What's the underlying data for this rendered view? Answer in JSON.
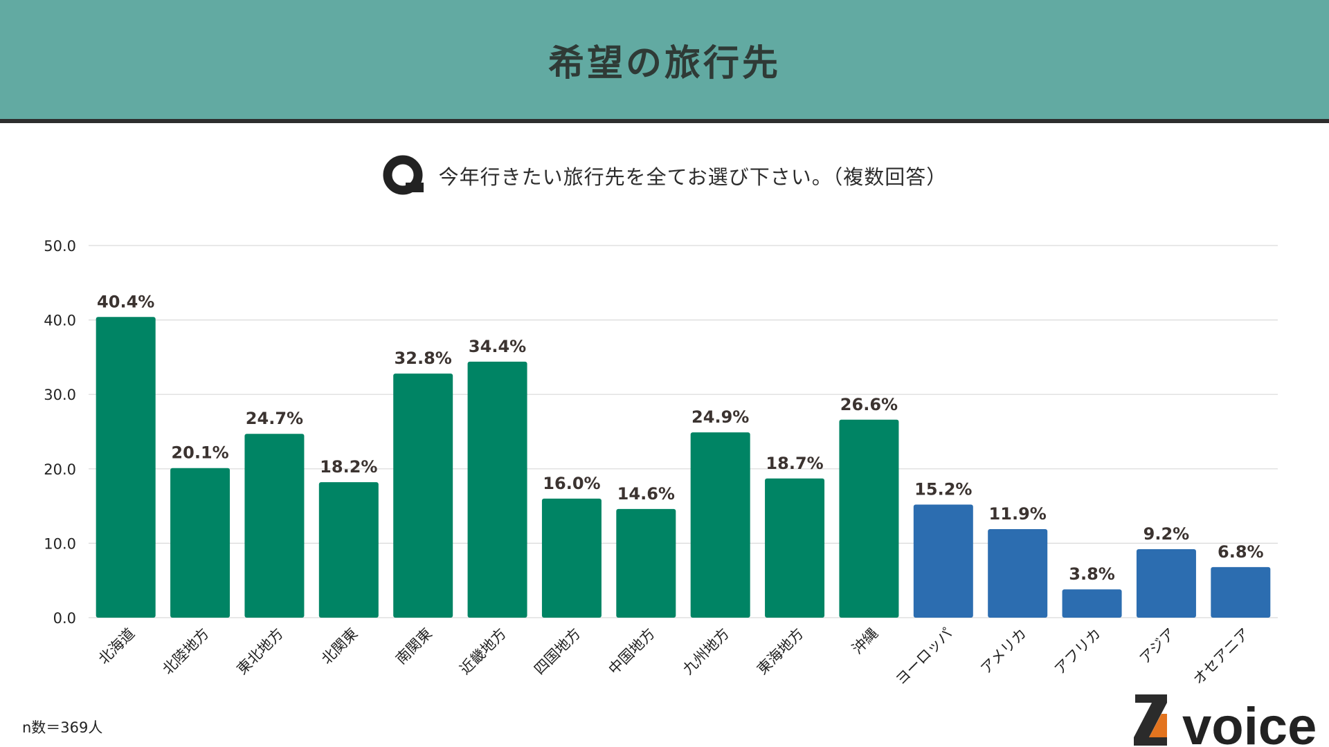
{
  "header": {
    "title": "希望の旅行先"
  },
  "question": {
    "prefix_icon": "Q-icon",
    "text": "今年行きたい旅行先を全てお選び下さい。（複数回答）"
  },
  "footer": {
    "n_label": "n数＝369人",
    "logo_text": "voice"
  },
  "colors": {
    "domestic": "#008464",
    "overseas": "#2c6db0",
    "header_bg": "#62aaa2",
    "grid": "#d9d9d9"
  },
  "chart_data": {
    "type": "bar",
    "categories": [
      "北海道",
      "北陸地方",
      "東北地方",
      "北関東",
      "南関東",
      "近畿地方",
      "四国地方",
      "中国地方",
      "九州地方",
      "東海地方",
      "沖縄",
      "ヨーロッパ",
      "アメリカ",
      "アフリカ",
      "アジア",
      "オセアニア"
    ],
    "values": [
      40.4,
      20.1,
      24.7,
      18.2,
      32.8,
      34.4,
      16.0,
      14.6,
      24.9,
      18.7,
      26.6,
      15.2,
      11.9,
      3.8,
      9.2,
      6.8
    ],
    "value_labels": [
      "40.4%",
      "20.1%",
      "24.7%",
      "18.2%",
      "32.8%",
      "34.4%",
      "16.0%",
      "14.6%",
      "24.9%",
      "18.7%",
      "26.6%",
      "15.2%",
      "11.9%",
      "3.8%",
      "9.2%",
      "6.8%"
    ],
    "groups": [
      "domestic",
      "domestic",
      "domestic",
      "domestic",
      "domestic",
      "domestic",
      "domestic",
      "domestic",
      "domestic",
      "domestic",
      "domestic",
      "overseas",
      "overseas",
      "overseas",
      "overseas",
      "overseas"
    ],
    "ylim": [
      0,
      50
    ],
    "yticks": [
      "0.0",
      "10.0",
      "20.0",
      "30.0",
      "40.0",
      "50.0"
    ],
    "grid": true
  }
}
